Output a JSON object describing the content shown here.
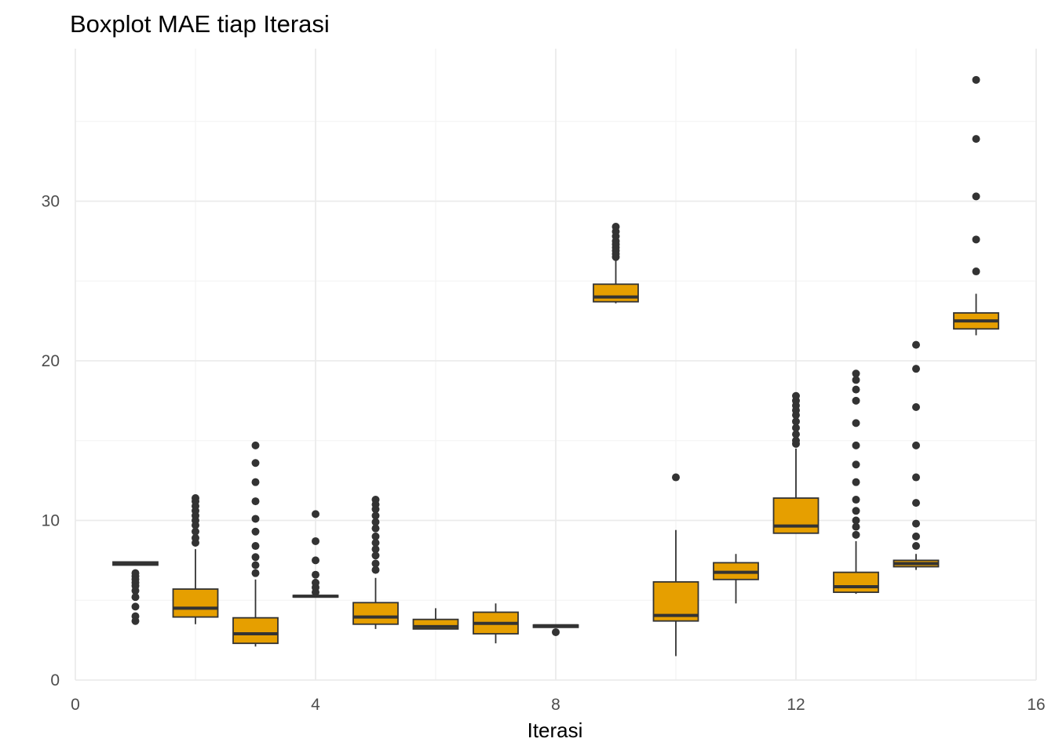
{
  "chart_data": {
    "type": "boxplot",
    "title": "Boxplot MAE tiap Iterasi",
    "xlabel": "Iterasi",
    "ylabel": "",
    "xlim": [
      0,
      16
    ],
    "ylim": [
      0,
      38
    ],
    "x_ticks": [
      0,
      4,
      8,
      12,
      16
    ],
    "y_ticks": [
      0,
      10,
      20,
      30
    ],
    "grid": true,
    "legend": "none",
    "colors": {
      "fill": "#E69F00",
      "line": "#333333",
      "grid": "#EBEBEB",
      "text": "#4D4D4D"
    },
    "boxes": [
      {
        "x": 1,
        "q1": 7.2,
        "median": 7.3,
        "q3": 7.4,
        "whisker_low": 7.2,
        "whisker_high": 7.4,
        "outliers": [
          3.7,
          4.0,
          4.6,
          5.2,
          5.6,
          5.9,
          6.1,
          6.3,
          6.5,
          6.7
        ]
      },
      {
        "x": 2,
        "q1": 3.95,
        "median": 4.5,
        "q3": 5.7,
        "whisker_low": 3.5,
        "whisker_high": 8.2,
        "outliers": [
          8.6,
          8.9,
          9.3,
          9.7,
          10.0,
          10.3,
          10.6,
          10.9,
          11.2,
          11.4
        ]
      },
      {
        "x": 3,
        "q1": 2.3,
        "median": 2.9,
        "q3": 3.9,
        "whisker_low": 2.1,
        "whisker_high": 6.3,
        "outliers": [
          6.7,
          7.2,
          7.7,
          8.4,
          9.3,
          10.1,
          11.2,
          12.4,
          13.6,
          14.7
        ]
      },
      {
        "x": 4,
        "q1": 5.2,
        "median": 5.25,
        "q3": 5.3,
        "whisker_low": 5.2,
        "whisker_high": 5.3,
        "outliers": [
          5.5,
          5.8,
          6.1,
          6.6,
          7.5,
          8.7,
          10.4
        ]
      },
      {
        "x": 5,
        "q1": 3.5,
        "median": 3.95,
        "q3": 4.85,
        "whisker_low": 3.2,
        "whisker_high": 6.4,
        "outliers": [
          6.9,
          7.3,
          7.8,
          8.2,
          8.6,
          9.0,
          9.5,
          9.9,
          10.3,
          10.7,
          11.0,
          11.3
        ]
      },
      {
        "x": 6,
        "q1": 3.2,
        "median": 3.35,
        "q3": 3.8,
        "whisker_low": 3.2,
        "whisker_high": 4.5,
        "outliers": []
      },
      {
        "x": 7,
        "q1": 2.9,
        "median": 3.55,
        "q3": 4.25,
        "whisker_low": 2.3,
        "whisker_high": 4.8,
        "outliers": []
      },
      {
        "x": 8,
        "q1": 3.3,
        "median": 3.4,
        "q3": 3.45,
        "whisker_low": 3.3,
        "whisker_high": 3.45,
        "outliers": [
          3.0
        ]
      },
      {
        "x": 9,
        "q1": 23.7,
        "median": 24.0,
        "q3": 24.8,
        "whisker_low": 23.6,
        "whisker_high": 26.3,
        "outliers": [
          26.5,
          26.7,
          26.9,
          27.1,
          27.3,
          27.5,
          27.8,
          28.1,
          28.4
        ]
      },
      {
        "x": 10,
        "q1": 3.7,
        "median": 4.05,
        "q3": 6.15,
        "whisker_low": 1.5,
        "whisker_high": 9.4,
        "outliers": [
          12.7
        ]
      },
      {
        "x": 11,
        "q1": 6.3,
        "median": 6.75,
        "q3": 7.35,
        "whisker_low": 4.8,
        "whisker_high": 7.9,
        "outliers": []
      },
      {
        "x": 12,
        "q1": 9.2,
        "median": 9.65,
        "q3": 11.4,
        "whisker_low": 9.2,
        "whisker_high": 14.5,
        "outliers": [
          14.8,
          15.0,
          15.4,
          15.8,
          16.2,
          16.6,
          16.9,
          17.2,
          17.5,
          17.8
        ]
      },
      {
        "x": 13,
        "q1": 5.5,
        "median": 5.85,
        "q3": 6.75,
        "whisker_low": 5.4,
        "whisker_high": 8.7,
        "outliers": [
          9.1,
          9.6,
          10.0,
          10.6,
          11.3,
          12.4,
          13.5,
          14.7,
          16.1,
          17.5,
          18.2,
          18.8,
          19.2
        ]
      },
      {
        "x": 14,
        "q1": 7.1,
        "median": 7.3,
        "q3": 7.5,
        "whisker_low": 6.9,
        "whisker_high": 7.9,
        "outliers": [
          8.4,
          9.0,
          9.8,
          11.1,
          12.7,
          14.7,
          17.1,
          19.5,
          21.0
        ]
      },
      {
        "x": 15,
        "q1": 22.0,
        "median": 22.5,
        "q3": 23.0,
        "whisker_low": 21.6,
        "whisker_high": 24.2,
        "outliers": [
          25.6,
          27.6,
          30.3,
          33.9,
          37.6
        ]
      }
    ]
  }
}
